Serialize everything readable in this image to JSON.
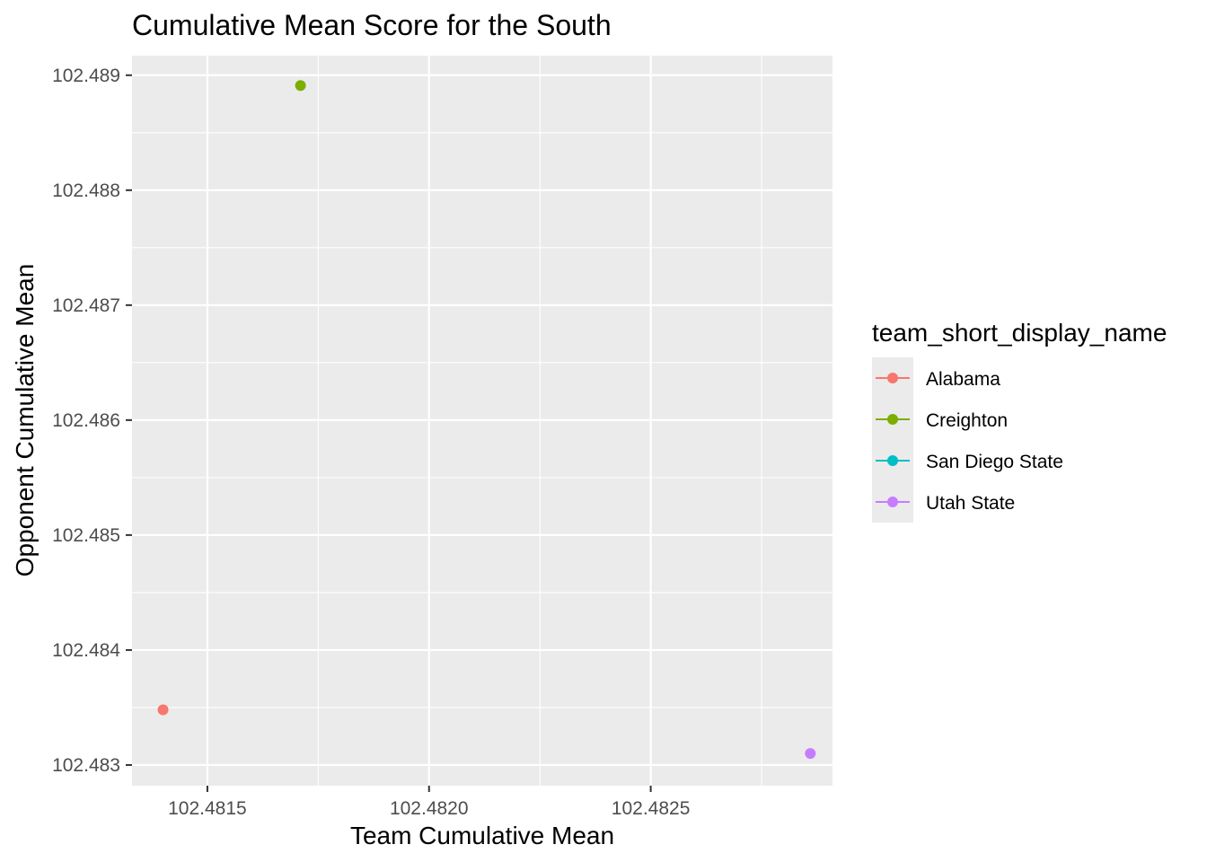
{
  "chart_data": {
    "type": "scatter",
    "title": "Cumulative Mean Score for the South",
    "xlabel": "Team Cumulative Mean",
    "ylabel": "Opponent Cumulative Mean",
    "xlim": [
      102.48133,
      102.48291
    ],
    "ylim": [
      102.48282,
      102.48917
    ],
    "x_ticks": [
      102.4815,
      102.482,
      102.4825
    ],
    "x_tick_labels": [
      "102.4815",
      "102.4820",
      "102.4825"
    ],
    "y_ticks": [
      102.483,
      102.484,
      102.485,
      102.486,
      102.487,
      102.488,
      102.489
    ],
    "y_tick_labels": [
      "102.483",
      "102.484",
      "102.485",
      "102.486",
      "102.487",
      "102.488",
      "102.489"
    ],
    "grid": true,
    "legend": {
      "title": "team_short_display_name",
      "placement": "right",
      "entries": [
        "Alabama",
        "Creighton",
        "San Diego State",
        "Utah State"
      ]
    },
    "series": [
      {
        "name": "Alabama",
        "color": "#F8766D",
        "points": [
          {
            "x": 102.4814,
            "y": 102.48348
          }
        ]
      },
      {
        "name": "Creighton",
        "color": "#7CAE00",
        "points": [
          {
            "x": 102.48171,
            "y": 102.48891
          }
        ]
      },
      {
        "name": "San Diego State",
        "color": "#00BFC4",
        "points": []
      },
      {
        "name": "Utah State",
        "color": "#C77CFF",
        "points": [
          {
            "x": 102.48286,
            "y": 102.4831
          }
        ]
      }
    ]
  }
}
